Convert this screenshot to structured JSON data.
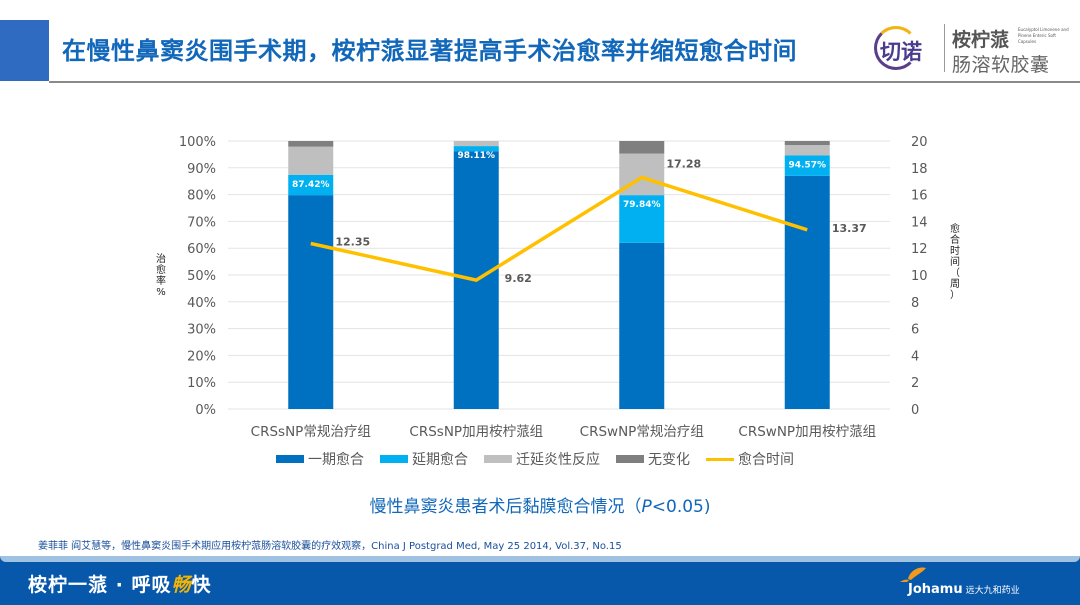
{
  "header": {
    "title": "在慢性鼻窦炎围手术期，桉柠蒎显著提高手术治愈率并缩短愈合时间",
    "brand_logo_text": "切诺",
    "brand_name": "桉柠蒎",
    "brand_english": "Eucalyptol Limonene and Pinene Enteric Soft Capsules",
    "brand_subtitle": "肠溶软胶囊"
  },
  "chart_data": {
    "type": "bar",
    "stacked": true,
    "categories": [
      "CRSsNP常规治疗组",
      "CRSsNP加用桉柠蒎组",
      "CRSwNP常规治疗组",
      "CRSwNP加用桉柠蒎组"
    ],
    "series": [
      {
        "name": "一期愈合",
        "axis": "left",
        "color": "#0070c0",
        "values": [
          79.8,
          96.2,
          62.0,
          87.0
        ]
      },
      {
        "name": "延期愈合",
        "axis": "left",
        "color": "#00b0f0",
        "values": [
          7.6,
          1.9,
          17.8,
          7.6
        ]
      },
      {
        "name": "迁延炎性反应",
        "axis": "left",
        "color": "#bfbfbf",
        "values": [
          10.5,
          1.9,
          15.5,
          3.9
        ]
      },
      {
        "name": "无变化",
        "axis": "left",
        "color": "#7f7f7f",
        "values": [
          2.1,
          0.0,
          4.7,
          1.5
        ]
      },
      {
        "name": "愈合时间",
        "type": "line",
        "axis": "right",
        "color": "#ffc000",
        "values": [
          12.35,
          9.62,
          17.28,
          13.37
        ]
      }
    ],
    "healed_rate_labels": [
      "87.42%",
      "98.11%",
      "79.84%",
      "94.57%"
    ],
    "line_labels": [
      "12.35",
      "9.62",
      "17.28",
      "13.37"
    ],
    "y_left": {
      "label": "治愈率%",
      "min": 0,
      "max": 100,
      "ticks": [
        "0%",
        "10%",
        "20%",
        "30%",
        "40%",
        "50%",
        "60%",
        "70%",
        "80%",
        "90%",
        "100%"
      ]
    },
    "y_right": {
      "label": "愈合时间（周）",
      "min": 0,
      "max": 20,
      "ticks": [
        "0",
        "2",
        "4",
        "6",
        "8",
        "10",
        "12",
        "14",
        "16",
        "18",
        "20"
      ]
    },
    "grid": true,
    "legend_position": "bottom",
    "title": "慢性鼻窦炎患者术后黏膜愈合情况",
    "title_stat_prefix": "（",
    "title_stat_p": "P",
    "title_stat_rest": "<0.05)"
  },
  "legend": {
    "items": [
      {
        "label": "一期愈合",
        "color": "#0070c0",
        "kind": "box"
      },
      {
        "label": "延期愈合",
        "color": "#00b0f0",
        "kind": "box"
      },
      {
        "label": "迁延炎性反应",
        "color": "#bfbfbf",
        "kind": "box"
      },
      {
        "label": "无变化",
        "color": "#7f7f7f",
        "kind": "box"
      },
      {
        "label": "愈合时间",
        "color": "#ffc000",
        "kind": "line"
      }
    ]
  },
  "citation": "姜菲菲 阎艾慧等，慢性鼻窦炎围手术期应用桉柠蒎肠溶软胶囊的疗效观察，China J Postgrad Med, May 25 2014, Vol.37, No.15",
  "footer": {
    "slogan_pre": "桉柠一蒎 · 呼吸",
    "slogan_highlight": "畅",
    "slogan_post": "快",
    "company_name": "Johamu",
    "company_cn": "远大九和药业"
  }
}
